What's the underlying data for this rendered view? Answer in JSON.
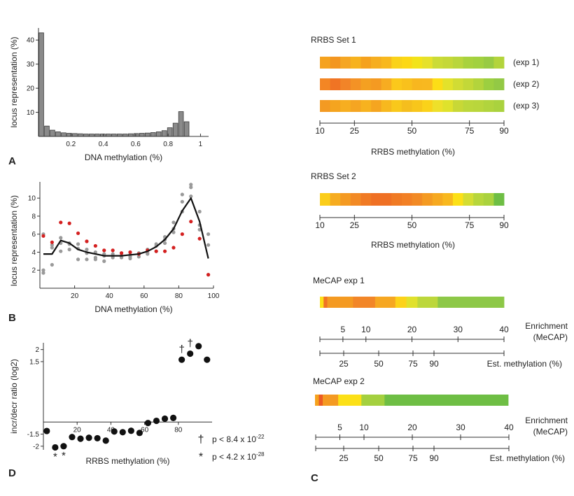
{
  "panels": {
    "A": "A",
    "B": "B",
    "C": "C",
    "D": "D"
  },
  "chart_data": [
    {
      "id": "A",
      "type": "bar",
      "xlabel": "DNA methylation (%)",
      "ylabel": "locus representation (%)",
      "xlim": [
        0,
        1.05
      ],
      "ylim": [
        0,
        45
      ],
      "xticks": [
        {
          "v": 0.2,
          "label": "0.2"
        },
        {
          "v": 0.4,
          "label": "0.4"
        },
        {
          "v": 0.6,
          "label": "0.6"
        },
        {
          "v": 0.8,
          "label": "0.8"
        },
        {
          "v": 1.0,
          "label": "1"
        }
      ],
      "yticks": [
        {
          "v": 10,
          "label": "10"
        },
        {
          "v": 20,
          "label": "20"
        },
        {
          "v": 30,
          "label": "30"
        },
        {
          "v": 40,
          "label": "40"
        }
      ],
      "bin_start": 0,
      "bin_width": 0.0345,
      "values": [
        43,
        4.3,
        2.6,
        1.9,
        1.5,
        1.3,
        1.2,
        1.1,
        1.0,
        1.0,
        1.0,
        1.0,
        1.0,
        1.0,
        1.0,
        1.0,
        1.1,
        1.2,
        1.3,
        1.4,
        1.6,
        1.9,
        2.4,
        3.6,
        5.5,
        10.3,
        6.1
      ]
    },
    {
      "id": "B",
      "type": "scatter",
      "xlabel": "DNA methylation (%)",
      "ylabel": "locus representation (%)",
      "xlim": [
        0,
        100
      ],
      "ylim": [
        0,
        11.8
      ],
      "xticks": [
        {
          "v": 20,
          "label": "20"
        },
        {
          "v": 40,
          "label": "40"
        },
        {
          "v": 60,
          "label": "60"
        },
        {
          "v": 80,
          "label": "80"
        },
        {
          "v": 100,
          "label": "100"
        }
      ],
      "yticks": [
        {
          "v": 2,
          "label": "2"
        },
        {
          "v": 4,
          "label": "4"
        },
        {
          "v": 6,
          "label": "6"
        },
        {
          "v": 8,
          "label": "8"
        },
        {
          "v": 10,
          "label": "10"
        }
      ],
      "series": [
        {
          "color": "#d42020",
          "x": [
            2,
            7,
            12,
            17,
            22,
            27,
            32,
            37,
            42,
            47,
            52,
            57,
            62,
            67,
            72,
            77,
            82,
            87,
            92,
            97
          ],
          "y": [
            5.8,
            5.1,
            7.3,
            7.2,
            6.1,
            5.2,
            4.7,
            4.2,
            4.2,
            3.9,
            4.0,
            3.8,
            4.2,
            4.1,
            4.1,
            4.5,
            6.0,
            7.4,
            5.5,
            1.5
          ]
        },
        {
          "color": "#9a9a9a",
          "x": [
            2,
            7,
            12,
            17,
            22,
            27,
            32,
            37,
            42,
            47,
            52,
            57,
            62,
            67,
            72,
            77,
            82,
            87,
            92,
            97
          ],
          "y": [
            6.0,
            4.8,
            5.6,
            5.0,
            4.4,
            4.3,
            4.0,
            3.8,
            3.6,
            3.6,
            3.7,
            3.9,
            4.3,
            4.9,
            5.4,
            6.6,
            9.6,
            11.2,
            8.5,
            6.0
          ]
        },
        {
          "color": "#9a9a9a",
          "x": [
            2,
            7,
            12,
            17,
            22,
            27,
            32,
            37,
            42,
            47,
            52,
            57,
            62,
            67,
            72,
            77,
            82,
            87,
            92,
            97
          ],
          "y": [
            1.7,
            2.6,
            4.1,
            4.9,
            3.2,
            3.9,
            3.4,
            3.6,
            3.4,
            3.4,
            3.5,
            3.8,
            3.8,
            4.1,
            5.7,
            7.3,
            8.5,
            10.2,
            7.0,
            4.8
          ]
        },
        {
          "color": "#9a9a9a",
          "x": [
            2,
            7,
            12,
            17,
            22,
            27,
            32,
            37,
            42,
            47,
            52,
            57,
            62,
            67,
            72,
            77,
            82,
            87,
            92,
            97
          ],
          "y": [
            2.0,
            4.5,
            5.0,
            4.3,
            4.9,
            3.2,
            3.2,
            3.0,
            3.8,
            3.5,
            3.3,
            3.5,
            3.9,
            4.7,
            5.0,
            6.2,
            10.4,
            11.5,
            6.5,
            1.5
          ]
        }
      ],
      "mean_line": {
        "color": "#111111",
        "x": [
          2,
          7,
          12,
          17,
          22,
          27,
          32,
          37,
          42,
          47,
          52,
          57,
          62,
          67,
          72,
          77,
          82,
          87,
          92,
          97
        ],
        "y": [
          3.8,
          3.8,
          5.3,
          5.0,
          4.3,
          4.0,
          3.8,
          3.6,
          3.6,
          3.6,
          3.7,
          3.8,
          4.1,
          4.6,
          5.4,
          6.6,
          8.6,
          10.0,
          7.4,
          3.3
        ]
      }
    },
    {
      "id": "D",
      "type": "scatter",
      "xlabel": "RRBS methylation (%)",
      "ylabel": "incr/decr ratio (log2)",
      "xlim": [
        0,
        100
      ],
      "ylim": [
        -2.15,
        2.28
      ],
      "baseline": -1.0,
      "xticks": [
        {
          "v": 20,
          "label": "20"
        },
        {
          "v": 40,
          "label": "40"
        },
        {
          "v": 60,
          "label": "60"
        },
        {
          "v": 80,
          "label": "80"
        }
      ],
      "yticks": [
        {
          "v": 2,
          "label": "2"
        },
        {
          "v": 1.5,
          "label": "1.5"
        },
        {
          "v": -1.5,
          "label": "-1.5"
        },
        {
          "v": -2,
          "label": "-2"
        }
      ],
      "x": [
        2,
        7,
        12,
        17,
        22,
        27,
        32,
        37,
        42,
        47,
        52,
        57,
        62,
        67,
        72,
        77,
        82,
        87,
        92,
        97
      ],
      "y": [
        -1.37,
        -2.05,
        -2.0,
        -1.62,
        -1.69,
        -1.65,
        -1.67,
        -1.77,
        -1.39,
        -1.42,
        -1.36,
        -1.45,
        -1.04,
        -0.95,
        -0.86,
        -0.83,
        1.58,
        1.83,
        2.14,
        1.58
      ],
      "markers": [
        {
          "symbol": "*",
          "x": 7
        },
        {
          "symbol": "*",
          "x": 12
        },
        {
          "symbol": "†",
          "x": 87
        },
        {
          "symbol": "†",
          "x": 82
        }
      ],
      "legend": [
        {
          "symbol": "†",
          "prefix": "p < 8.4 x 10",
          "exponent": "-22"
        },
        {
          "symbol": "*",
          "prefix": "p < 4.2 x 10",
          "exponent": "-28"
        }
      ]
    },
    {
      "id": "C",
      "type": "heatmap",
      "groups": [
        {
          "title": "RRBS Set 1",
          "rows": [
            {
              "label": "(exp 1)",
              "colors": [
                "#f5a21e",
                "#f39620",
                "#f5a623",
                "#f7b21e",
                "#f5a21e",
                "#f6ae20",
                "#f8b81e",
                "#fad21a",
                "#fcd815",
                "#f2e319",
                "#e6e12a",
                "#cbdb36",
                "#c5d838",
                "#b9d63c",
                "#a8d23d",
                "#a2d13f",
                "#98cb43",
                "#b3d43c"
              ]
            },
            {
              "label": "(exp 2)",
              "colors": [
                "#f38624",
                "#f07424",
                "#f28428",
                "#f49225",
                "#f4a021",
                "#f49a22",
                "#f7ac21",
                "#fbc81b",
                "#f9c11c",
                "#f8b71f",
                "#f8b820",
                "#fcdd17",
                "#e3e22b",
                "#d1dc34",
                "#c3d838",
                "#b3d43c",
                "#9ccf40",
                "#93c945"
              ]
            },
            {
              "label": "(exp 3)",
              "colors": [
                "#f39a22",
                "#f5a41f",
                "#f7ae20",
                "#f5a522",
                "#f7b21f",
                "#f5a520",
                "#f7b81e",
                "#f9c81b",
                "#f5be1d",
                "#f8c61b",
                "#fad21a",
                "#eee02a",
                "#dfe22c",
                "#c8d836",
                "#bcd73b",
                "#b9d63c",
                "#b1d43d",
                "#aad23e"
              ]
            }
          ],
          "axis_ticks": [
            {
              "v": 10,
              "label": "10"
            },
            {
              "v": 25,
              "label": "25"
            },
            {
              "v": 50,
              "label": "50"
            },
            {
              "v": 75,
              "label": "75"
            },
            {
              "v": 90,
              "label": "90"
            }
          ],
          "axis_range": [
            10,
            90
          ],
          "axis_label": "RRBS methylation (%)"
        },
        {
          "title": "RRBS Set 2",
          "rows": [
            {
              "label": "",
              "colors": [
                "#fbcd1a",
                "#f6ac20",
                "#f49a22",
                "#f28a25",
                "#f07a24",
                "#ef7024",
                "#ef7024",
                "#f07a24",
                "#f28025",
                "#f28a25",
                "#f49a22",
                "#f6a920",
                "#f8b81e",
                "#fce017",
                "#d4dd33",
                "#b7d63c",
                "#aad23e",
                "#6ebe44"
              ]
            }
          ],
          "axis_ticks": [
            {
              "v": 10,
              "label": "10"
            },
            {
              "v": 25,
              "label": "25"
            },
            {
              "v": 50,
              "label": "50"
            },
            {
              "v": 75,
              "label": "75"
            },
            {
              "v": 90,
              "label": "90"
            }
          ],
          "axis_range": [
            10,
            90
          ],
          "axis_label": "RRBS methylation (%)"
        },
        {
          "title": "MeCAP exp 1",
          "segments": [
            {
              "w": 2,
              "color": "#fce017"
            },
            {
              "w": 2,
              "color": "#f07424"
            },
            {
              "w": 14,
              "color": "#f49a22"
            },
            {
              "w": 12,
              "color": "#f28628"
            },
            {
              "w": 11,
              "color": "#f6a722"
            },
            {
              "w": 6,
              "color": "#fcd21a"
            },
            {
              "w": 6,
              "color": "#e0e12c"
            },
            {
              "w": 11,
              "color": "#bcd73b"
            },
            {
              "w": 36,
              "color": "#8dc847"
            }
          ],
          "top_axis": {
            "label": "Enrichment",
            "sublabel": "(MeCAP)",
            "ticks": [
              {
                "v": 5,
                "label": "5"
              },
              {
                "v": 10,
                "label": "10"
              },
              {
                "v": 20,
                "label": "20"
              },
              {
                "v": 30,
                "label": "30"
              },
              {
                "v": 40,
                "label": "40"
              }
            ]
          },
          "bottom_axis": {
            "label": "Est. methylation (%)",
            "ticks": [
              {
                "v": 25,
                "label": "25"
              },
              {
                "v": 50,
                "label": "50"
              },
              {
                "v": 75,
                "label": "75"
              },
              {
                "v": 90,
                "label": "90"
              }
            ]
          }
        },
        {
          "title": "MeCAP exp 2",
          "segments": [
            {
              "w": 2,
              "color": "#f5a21e"
            },
            {
              "w": 2,
              "color": "#ec5b24"
            },
            {
              "w": 8,
              "color": "#f49a22"
            },
            {
              "w": 12,
              "color": "#fce017"
            },
            {
              "w": 12,
              "color": "#a4d03f"
            },
            {
              "w": 64,
              "color": "#6ebe44"
            }
          ],
          "top_axis": {
            "label": "Enrichment",
            "sublabel": "(MeCAP)",
            "ticks": [
              {
                "v": 5,
                "label": "5"
              },
              {
                "v": 10,
                "label": "10"
              },
              {
                "v": 20,
                "label": "20"
              },
              {
                "v": 30,
                "label": "30"
              },
              {
                "v": 40,
                "label": "40"
              }
            ]
          },
          "bottom_axis": {
            "label": "Est. methylation (%)",
            "ticks": [
              {
                "v": 25,
                "label": "25"
              },
              {
                "v": 50,
                "label": "50"
              },
              {
                "v": 75,
                "label": "75"
              },
              {
                "v": 90,
                "label": "90"
              }
            ]
          }
        }
      ]
    }
  ]
}
